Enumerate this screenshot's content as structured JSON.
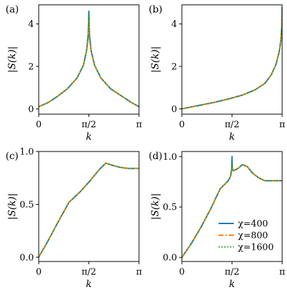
{
  "chart_data": [
    {
      "type": "line",
      "panel_label": "(a)",
      "xlabel": "k",
      "ylabel": "|S(k)|",
      "xlim": [
        0,
        3.1416
      ],
      "ylim": [
        -0.25,
        4.9
      ],
      "x_ticks": [
        {
          "value": 0,
          "label": "0"
        },
        {
          "value": 1.5708,
          "label": "π/2"
        },
        {
          "value": 3.1416,
          "label": "π"
        }
      ],
      "y_ticks": [
        {
          "value": 0,
          "label": "0"
        },
        {
          "value": 2,
          "label": "2"
        },
        {
          "value": 4,
          "label": "4"
        }
      ],
      "series": [
        {
          "name": "χ=400",
          "color": "#1f77b4",
          "dash": "solid",
          "x": [
            0,
            0.3,
            0.6,
            0.9,
            1.2,
            1.4,
            1.5,
            1.55,
            1.5708,
            1.59,
            1.64,
            1.75,
            1.95,
            2.25,
            2.6,
            2.9,
            3.1416
          ],
          "y": [
            0.1,
            0.3,
            0.6,
            0.95,
            1.45,
            2.05,
            2.75,
            3.5,
            4.6,
            3.5,
            2.75,
            2.05,
            1.45,
            0.95,
            0.6,
            0.3,
            0.1
          ]
        },
        {
          "name": "χ=800",
          "color": "#ff7f0e",
          "dash": "dashdot",
          "x": [
            0,
            0.3,
            0.6,
            0.9,
            1.2,
            1.4,
            1.5,
            1.55,
            1.5708,
            1.59,
            1.64,
            1.75,
            1.95,
            2.25,
            2.6,
            2.9,
            3.1416
          ],
          "y": [
            0.1,
            0.3,
            0.6,
            0.95,
            1.45,
            2.05,
            2.75,
            3.3,
            4.2,
            3.3,
            2.75,
            2.05,
            1.45,
            0.95,
            0.6,
            0.3,
            0.1
          ]
        },
        {
          "name": "χ=1600",
          "color": "#2ca02c",
          "dash": "dotted",
          "x": [
            0,
            0.3,
            0.6,
            0.9,
            1.2,
            1.4,
            1.5,
            1.55,
            1.5708,
            1.59,
            1.64,
            1.75,
            1.95,
            2.25,
            2.6,
            2.9,
            3.1416
          ],
          "y": [
            0.1,
            0.3,
            0.6,
            0.95,
            1.45,
            2.05,
            2.75,
            3.4,
            4.4,
            3.4,
            2.75,
            2.05,
            1.45,
            0.95,
            0.6,
            0.3,
            0.1
          ]
        }
      ]
    },
    {
      "type": "line",
      "panel_label": "(b)",
      "xlabel": "k",
      "ylabel": "|S(k)|",
      "xlim": [
        0,
        3.1416
      ],
      "ylim": [
        -0.25,
        4.9
      ],
      "x_ticks": [
        {
          "value": 0,
          "label": "0"
        },
        {
          "value": 1.5708,
          "label": "π/2"
        },
        {
          "value": 3.1416,
          "label": "π"
        }
      ],
      "y_ticks": [
        {
          "value": 0,
          "label": "0"
        },
        {
          "value": 2,
          "label": "2"
        },
        {
          "value": 4,
          "label": "4"
        }
      ],
      "series": [
        {
          "name": "χ=400",
          "color": "#1f77b4",
          "dash": "solid",
          "x": [
            0,
            0.5,
            1.0,
            1.5,
            1.9,
            2.3,
            2.6,
            2.8,
            2.95,
            3.05,
            3.1,
            3.13,
            3.1416
          ],
          "y": [
            0.0,
            0.15,
            0.3,
            0.48,
            0.65,
            0.9,
            1.2,
            1.6,
            2.1,
            2.7,
            3.2,
            3.9,
            4.8
          ]
        },
        {
          "name": "χ=800",
          "color": "#ff7f0e",
          "dash": "dashdot",
          "x": [
            0,
            0.5,
            1.0,
            1.5,
            1.9,
            2.3,
            2.6,
            2.8,
            2.95,
            3.05,
            3.1,
            3.13,
            3.1416
          ],
          "y": [
            0.0,
            0.15,
            0.3,
            0.48,
            0.65,
            0.9,
            1.2,
            1.6,
            2.1,
            2.7,
            3.2,
            3.9,
            4.7
          ]
        },
        {
          "name": "χ=1600",
          "color": "#2ca02c",
          "dash": "dotted",
          "x": [
            0,
            0.5,
            1.0,
            1.5,
            1.9,
            2.3,
            2.6,
            2.8,
            2.95,
            3.05,
            3.1,
            3.13,
            3.1416
          ],
          "y": [
            0.0,
            0.15,
            0.3,
            0.48,
            0.65,
            0.9,
            1.2,
            1.6,
            2.1,
            2.7,
            3.2,
            3.9,
            4.75
          ]
        }
      ]
    },
    {
      "type": "line",
      "panel_label": "(c)",
      "xlabel": "k",
      "ylabel": "|S(k)|",
      "xlim": [
        0,
        3.1416
      ],
      "ylim": [
        -0.04,
        1.0
      ],
      "x_ticks": [
        {
          "value": 0,
          "label": "0"
        },
        {
          "value": 1.5708,
          "label": "π/2"
        },
        {
          "value": 3.1416,
          "label": "π"
        }
      ],
      "y_ticks": [
        {
          "value": 0,
          "label": "0.0"
        },
        {
          "value": 0.5,
          "label": "0.5"
        },
        {
          "value": 1.0,
          "label": "1.0"
        }
      ],
      "series": [
        {
          "name": "χ=400",
          "color": "#1f77b4",
          "dash": "solid",
          "x": [
            0,
            0.3,
            0.6,
            0.95,
            1.3,
            1.6,
            1.9,
            2.1,
            2.3,
            2.55,
            2.8,
            3.1416
          ],
          "y": [
            0.0,
            0.16,
            0.33,
            0.52,
            0.62,
            0.72,
            0.83,
            0.89,
            0.87,
            0.85,
            0.84,
            0.84
          ]
        },
        {
          "name": "χ=800",
          "color": "#ff7f0e",
          "dash": "dashdot",
          "x": [
            0,
            0.3,
            0.6,
            0.95,
            1.3,
            1.6,
            1.9,
            2.1,
            2.3,
            2.55,
            2.8,
            3.1416
          ],
          "y": [
            0.0,
            0.16,
            0.33,
            0.52,
            0.62,
            0.72,
            0.83,
            0.89,
            0.87,
            0.85,
            0.84,
            0.84
          ]
        },
        {
          "name": "χ=1600",
          "color": "#2ca02c",
          "dash": "dotted",
          "x": [
            0,
            0.3,
            0.6,
            0.95,
            1.3,
            1.6,
            1.9,
            2.1,
            2.3,
            2.55,
            2.8,
            3.1416
          ],
          "y": [
            0.0,
            0.16,
            0.33,
            0.52,
            0.62,
            0.72,
            0.83,
            0.89,
            0.87,
            0.85,
            0.84,
            0.84
          ]
        }
      ]
    },
    {
      "type": "line",
      "panel_label": "(d)",
      "xlabel": "k",
      "ylabel": "|S(k)|",
      "xlim": [
        0,
        3.1416
      ],
      "ylim": [
        -0.04,
        1.05
      ],
      "x_ticks": [
        {
          "value": 0,
          "label": "0"
        },
        {
          "value": 1.5708,
          "label": "π/2"
        },
        {
          "value": 3.1416,
          "label": "π"
        }
      ],
      "y_ticks": [
        {
          "value": 0,
          "label": "0.0"
        },
        {
          "value": 0.5,
          "label": "0.5"
        },
        {
          "value": 1.0,
          "label": "1.0"
        }
      ],
      "legend": {
        "position": "bottom-right"
      },
      "series": [
        {
          "name": "χ=400",
          "color": "#1f77b4",
          "dash": "solid",
          "x": [
            0,
            0.3,
            0.6,
            0.9,
            1.2,
            1.45,
            1.52,
            1.56,
            1.5708,
            1.58,
            1.62,
            1.75,
            1.9,
            2.05,
            2.2,
            2.4,
            2.6,
            2.8,
            3.1416
          ],
          "y": [
            0.0,
            0.14,
            0.3,
            0.48,
            0.68,
            0.76,
            0.8,
            0.88,
            1.0,
            0.88,
            0.86,
            0.88,
            0.92,
            0.9,
            0.84,
            0.79,
            0.76,
            0.76,
            0.76
          ]
        },
        {
          "name": "χ=800",
          "color": "#ff7f0e",
          "dash": "dashdot",
          "x": [
            0,
            0.3,
            0.6,
            0.9,
            1.2,
            1.45,
            1.52,
            1.56,
            1.5708,
            1.58,
            1.62,
            1.75,
            1.9,
            2.05,
            2.2,
            2.4,
            2.6,
            2.8,
            3.1416
          ],
          "y": [
            0.0,
            0.14,
            0.3,
            0.48,
            0.68,
            0.76,
            0.8,
            0.84,
            0.9,
            0.86,
            0.86,
            0.88,
            0.92,
            0.9,
            0.84,
            0.79,
            0.76,
            0.76,
            0.76
          ]
        },
        {
          "name": "χ=1600",
          "color": "#2ca02c",
          "dash": "dotted",
          "x": [
            0,
            0.3,
            0.6,
            0.9,
            1.2,
            1.45,
            1.52,
            1.56,
            1.5708,
            1.58,
            1.62,
            1.75,
            1.9,
            2.05,
            2.2,
            2.4,
            2.6,
            2.8,
            3.1416
          ],
          "y": [
            0.0,
            0.14,
            0.3,
            0.48,
            0.68,
            0.76,
            0.8,
            0.86,
            0.94,
            0.87,
            0.86,
            0.88,
            0.92,
            0.9,
            0.84,
            0.79,
            0.76,
            0.76,
            0.76
          ]
        }
      ]
    }
  ]
}
